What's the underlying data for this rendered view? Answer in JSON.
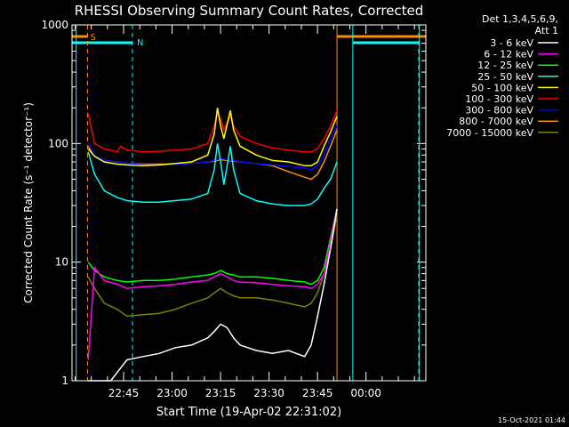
{
  "chart_data": {
    "type": "line",
    "title": "RHESSI Observing Summary Count Rates, Corrected",
    "xlabel": "Start Time (19-Apr-02 22:31:02)",
    "ylabel": "Corrected Count Rate (s⁻¹ detector⁻¹)",
    "yscale": "log",
    "ylim": [
      1,
      1000
    ],
    "xlim_minutes_after_start": [
      -2.0,
      107.5
    ],
    "ytick_labels": [
      "1",
      "10",
      "100",
      "1000"
    ],
    "ytick_values": [
      1,
      10,
      100,
      1000
    ],
    "xtick_labels": [
      "22:45",
      "23:00",
      "23:15",
      "23:30",
      "23:45",
      "00:00"
    ],
    "xtick_minutes_after_start": [
      13.97,
      28.97,
      43.97,
      58.97,
      73.97,
      88.97
    ],
    "legend_position": "right",
    "legend_header": [
      "Det 1,3,4,5,6,9,",
      "Att 1"
    ],
    "timestamp": "15-Oct-2021 01:44",
    "flag_markers": {
      "saa_label": "S",
      "night_label": "N",
      "saa_intervals_minutes": [
        [
          -2.0,
          2.8
        ],
        [
          80.0,
          107.5
        ]
      ],
      "night_intervals_minutes": [
        [
          -2.0,
          16.7
        ],
        [
          84.9,
          105.5
        ]
      ],
      "cyan_lines_minutes": [
        -0.7,
        84.9,
        105.5
      ],
      "cyan_dashed_lines_minutes": [
        16.7,
        105.3
      ],
      "orange_dashed_lines_minutes": [
        2.8
      ],
      "orange_lines_minutes": [
        80.0
      ]
    },
    "series": [
      {
        "name": "3 - 6 keV",
        "color": "#ffffff",
        "x": [
          3,
          10,
          15,
          20,
          25,
          30,
          35,
          40,
          42,
          44,
          46,
          48,
          50,
          55,
          60,
          65,
          70,
          72,
          74,
          76,
          78,
          80
        ],
        "y": [
          1.0,
          1.0,
          1.5,
          1.6,
          1.7,
          1.9,
          2.0,
          2.3,
          2.6,
          3.0,
          2.8,
          2.3,
          2.0,
          1.8,
          1.7,
          1.8,
          1.6,
          2.0,
          3.5,
          6.5,
          13,
          28
        ]
      },
      {
        "name": "6 - 12 keV",
        "color": "#ff00ff",
        "x": [
          3,
          5,
          8,
          12,
          15,
          20,
          25,
          30,
          35,
          40,
          42,
          44,
          46,
          48,
          50,
          55,
          60,
          65,
          70,
          72,
          74,
          76,
          78,
          80
        ],
        "y": [
          1.5,
          9.0,
          7.0,
          6.5,
          6.0,
          6.2,
          6.3,
          6.5,
          6.8,
          7.0,
          7.5,
          8.0,
          7.5,
          7.0,
          6.8,
          6.7,
          6.5,
          6.3,
          6.2,
          6.0,
          6.5,
          8.0,
          15,
          28
        ]
      },
      {
        "name": "12 - 25 keV",
        "color": "#00ff00",
        "x": [
          3,
          5,
          8,
          12,
          15,
          20,
          25,
          30,
          35,
          40,
          42,
          44,
          46,
          48,
          50,
          55,
          60,
          65,
          70,
          72,
          74,
          76,
          78,
          80
        ],
        "y": [
          10,
          8.5,
          7.5,
          7.0,
          6.8,
          7.0,
          7.0,
          7.2,
          7.5,
          7.8,
          8.0,
          8.5,
          8.0,
          7.8,
          7.5,
          7.5,
          7.3,
          7.0,
          6.8,
          6.5,
          7.0,
          9.0,
          16,
          28
        ]
      },
      {
        "name": "25 - 50 keV",
        "color": "#00ffff",
        "x": [
          3,
          5,
          8,
          12,
          15,
          20,
          25,
          30,
          35,
          40,
          42,
          43,
          44,
          45,
          46,
          47,
          48,
          50,
          55,
          60,
          65,
          70,
          72,
          74,
          76,
          78,
          80
        ],
        "y": [
          85,
          55,
          40,
          35,
          33,
          32,
          32,
          33,
          34,
          38,
          60,
          100,
          70,
          45,
          65,
          95,
          60,
          38,
          33,
          31,
          30,
          30,
          31,
          34,
          42,
          50,
          70
        ]
      },
      {
        "name": "50 - 100 keV",
        "color": "#ffff00",
        "x": [
          3,
          5,
          8,
          12,
          15,
          20,
          25,
          30,
          35,
          40,
          42,
          43,
          44,
          45,
          46,
          47,
          48,
          50,
          55,
          60,
          65,
          70,
          72,
          74,
          76,
          78,
          80
        ],
        "y": [
          90,
          78,
          70,
          67,
          66,
          65,
          66,
          68,
          70,
          80,
          120,
          200,
          140,
          110,
          145,
          190,
          130,
          95,
          80,
          72,
          70,
          65,
          65,
          70,
          95,
          125,
          170
        ]
      },
      {
        "name": "100 - 300 keV",
        "color": "#ff0000",
        "x": [
          3,
          5,
          8,
          12,
          13,
          15,
          20,
          25,
          30,
          35,
          40,
          42,
          43,
          44,
          45,
          46,
          47,
          48,
          50,
          55,
          60,
          65,
          70,
          72,
          74,
          76,
          78,
          80
        ],
        "y": [
          180,
          100,
          90,
          85,
          95,
          88,
          85,
          86,
          88,
          90,
          100,
          140,
          180,
          160,
          130,
          150,
          170,
          140,
          115,
          100,
          92,
          88,
          85,
          85,
          90,
          110,
          140,
          190
        ]
      },
      {
        "name": "300 - 800 keV",
        "color": "#0000ff",
        "x": [
          3,
          5,
          8,
          12,
          15,
          20,
          25,
          30,
          35,
          40,
          42,
          44,
          46,
          48,
          50,
          55,
          60,
          65,
          70,
          72,
          74,
          76,
          78,
          80
        ],
        "y": [
          100,
          80,
          72,
          70,
          68,
          66,
          66,
          67,
          68,
          70,
          72,
          75,
          73,
          72,
          70,
          68,
          66,
          64,
          62,
          60,
          65,
          80,
          110,
          140
        ]
      },
      {
        "name": "800 - 7000 keV",
        "color": "#ff8c00",
        "x": [
          3,
          5,
          8,
          12,
          15,
          20,
          25,
          30,
          35,
          40,
          42,
          44,
          46,
          48,
          50,
          55,
          60,
          65,
          70,
          72,
          74,
          76,
          78,
          80
        ],
        "y": [
          95,
          78,
          72,
          70,
          68,
          67,
          67,
          67,
          68,
          70,
          71,
          73,
          72,
          71,
          70,
          68,
          65,
          58,
          52,
          50,
          55,
          70,
          95,
          130
        ]
      },
      {
        "name": "7000 - 15000 keV",
        "color": "#808000",
        "x": [
          3,
          5,
          8,
          12,
          15,
          20,
          25,
          30,
          35,
          40,
          42,
          44,
          46,
          48,
          50,
          55,
          60,
          65,
          70,
          72,
          74,
          76,
          78,
          80
        ],
        "y": [
          7.5,
          6.0,
          4.5,
          4.0,
          3.5,
          3.6,
          3.7,
          4.0,
          4.5,
          5.0,
          5.5,
          6.0,
          5.5,
          5.2,
          5.0,
          5.0,
          4.8,
          4.5,
          4.2,
          4.5,
          5.5,
          8.0,
          13,
          25
        ]
      }
    ]
  }
}
